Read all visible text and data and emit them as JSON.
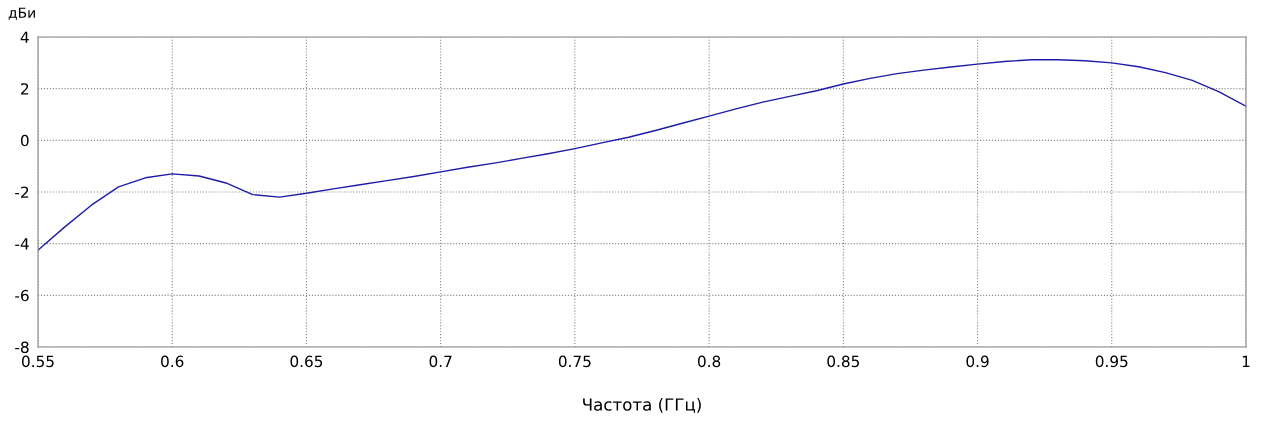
{
  "chart_data": {
    "type": "line",
    "ylabel": "дБи",
    "xlabel": "Частота (ГГц)",
    "x": [
      0.55,
      0.56,
      0.57,
      0.58,
      0.59,
      0.6,
      0.61,
      0.62,
      0.63,
      0.64,
      0.65,
      0.66,
      0.67,
      0.68,
      0.69,
      0.7,
      0.71,
      0.72,
      0.73,
      0.74,
      0.75,
      0.76,
      0.77,
      0.78,
      0.79,
      0.8,
      0.81,
      0.82,
      0.83,
      0.84,
      0.85,
      0.86,
      0.87,
      0.88,
      0.89,
      0.9,
      0.91,
      0.92,
      0.93,
      0.94,
      0.95,
      0.96,
      0.97,
      0.98,
      0.99,
      1.0
    ],
    "series": [
      {
        "color": "#1c1ca8",
        "values": [
          -4.25,
          -3.35,
          -2.5,
          -1.8,
          -1.45,
          -1.3,
          -1.38,
          -1.65,
          -2.1,
          -2.2,
          -2.05,
          -1.88,
          -1.72,
          -1.56,
          -1.4,
          -1.22,
          -1.04,
          -0.88,
          -0.7,
          -0.52,
          -0.32,
          -0.1,
          0.12,
          0.38,
          0.66,
          0.94,
          1.22,
          1.48,
          1.7,
          1.92,
          2.18,
          2.4,
          2.58,
          2.72,
          2.84,
          2.95,
          3.05,
          3.12,
          3.12,
          3.08,
          3.0,
          2.85,
          2.62,
          2.32,
          1.88,
          1.32
        ]
      }
    ],
    "xlim": [
      0.55,
      1.0
    ],
    "xticks": [
      0.55,
      0.6,
      0.65,
      0.7,
      0.75,
      0.8,
      0.85,
      0.9,
      0.95,
      1
    ],
    "ylim": [
      -8,
      4
    ],
    "yticks": [
      -8,
      -6,
      -4,
      -2,
      0,
      2,
      4
    ],
    "grid": true,
    "line_style": "solid",
    "marker": "none",
    "legend": false
  }
}
